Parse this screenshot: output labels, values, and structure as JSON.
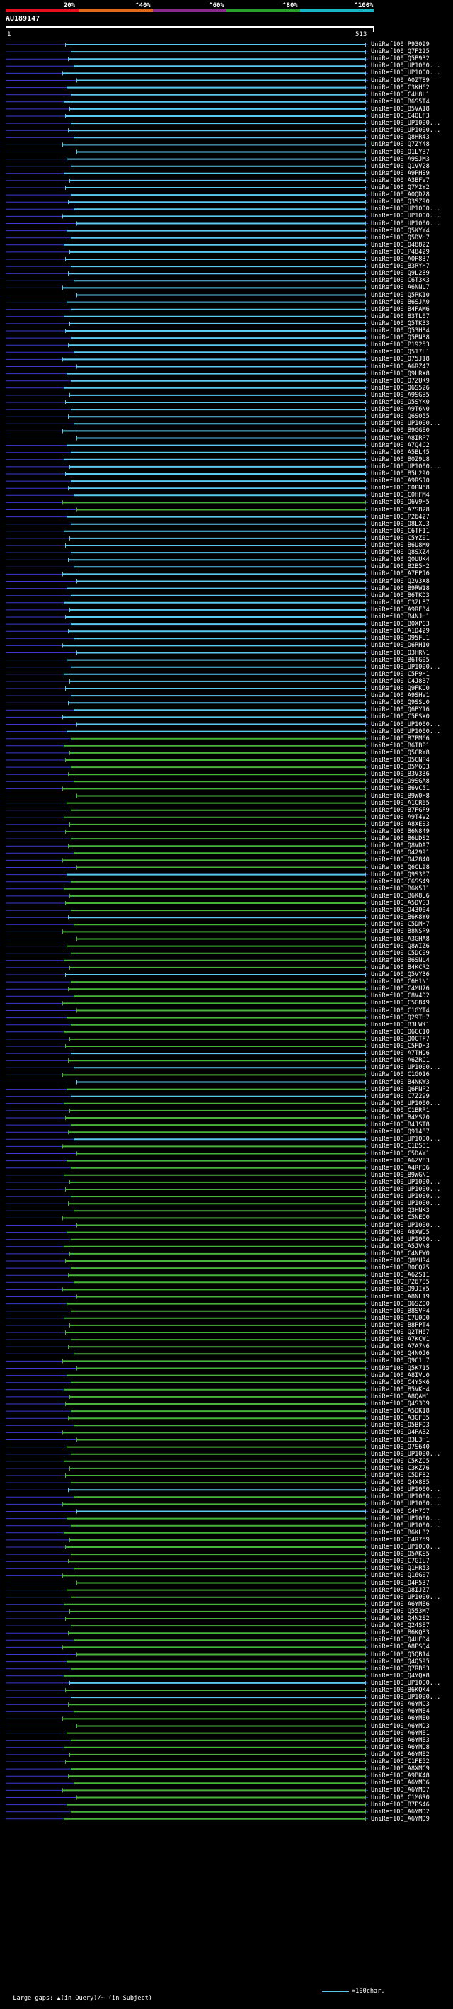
{
  "header": {
    "color_key": [
      {
        "label": "20%",
        "color": "#e8101e"
      },
      {
        "label": "^40%",
        "color": "#e06a1a"
      },
      {
        "label": "^60%",
        "color": "#8a2a8f"
      },
      {
        "label": "^80%",
        "color": "#2aa12a"
      },
      {
        "label": "^100%",
        "color": "#18b7c7"
      }
    ],
    "query_id": "AU189147",
    "ruler_start": "1",
    "ruler_end": "513"
  },
  "colors": {
    "cyan": "#5bc8f0",
    "green": "#47b33a",
    "blue_line": "#3a3ad0",
    "white": "#ffffff"
  },
  "hits": [
    {
      "label": "UniRef100_P93099",
      "c": "c"
    },
    {
      "label": "UniRef100_Q7F225",
      "c": "c"
    },
    {
      "label": "UniRef100_Q5B932",
      "c": "c"
    },
    {
      "label": "UniRef100_UP1000...",
      "c": "c"
    },
    {
      "label": "UniRef100_UP1000...",
      "c": "c"
    },
    {
      "label": "UniRef100_A0ZT89",
      "c": "c"
    },
    {
      "label": "UniRef100_C3KH62",
      "c": "c"
    },
    {
      "label": "UniRef100_C4H8L1",
      "c": "c"
    },
    {
      "label": "UniRef100_B6S5T4",
      "c": "c"
    },
    {
      "label": "UniRef100_B5VA18",
      "c": "c"
    },
    {
      "label": "UniRef100_C4QLF3",
      "c": "c"
    },
    {
      "label": "UniRef100_UP1000...",
      "c": "c"
    },
    {
      "label": "UniRef100_UP1000...",
      "c": "c"
    },
    {
      "label": "UniRef100_Q8HR43",
      "c": "c"
    },
    {
      "label": "UniRef100_Q7ZY48",
      "c": "c"
    },
    {
      "label": "UniRef100_Q1LYB7",
      "c": "c"
    },
    {
      "label": "UniRef100_A9SJM3",
      "c": "c"
    },
    {
      "label": "UniRef100_Q1VV28",
      "c": "c"
    },
    {
      "label": "UniRef100_A9PHS9",
      "c": "c"
    },
    {
      "label": "UniRef100_A3BFV7",
      "c": "c"
    },
    {
      "label": "UniRef100_Q7M2Y2",
      "c": "c"
    },
    {
      "label": "UniRef100_A0QD28",
      "c": "c"
    },
    {
      "label": "UniRef100_Q3SZ90",
      "c": "c"
    },
    {
      "label": "UniRef100_UP1000...",
      "c": "c"
    },
    {
      "label": "UniRef100_UP1000...",
      "c": "c"
    },
    {
      "label": "UniRef100_UP1000...",
      "c": "c"
    },
    {
      "label": "UniRef100_Q5KYY4",
      "c": "c"
    },
    {
      "label": "UniRef100_Q5DVH7",
      "c": "c"
    },
    {
      "label": "UniRef100_O48822",
      "c": "c"
    },
    {
      "label": "UniRef100_P48429",
      "c": "c"
    },
    {
      "label": "UniRef100_A0P837",
      "c": "c"
    },
    {
      "label": "UniRef100_B3RYH7",
      "c": "c"
    },
    {
      "label": "UniRef100_Q9L289",
      "c": "c"
    },
    {
      "label": "UniRef100_C6T3K3",
      "c": "c"
    },
    {
      "label": "UniRef100_A6NNL7",
      "c": "c"
    },
    {
      "label": "UniRef100_Q5RK10",
      "c": "c"
    },
    {
      "label": "UniRef100_B6SJA0",
      "c": "c"
    },
    {
      "label": "UniRef100_B4FAM6",
      "c": "c"
    },
    {
      "label": "UniRef100_B3TL07",
      "c": "c"
    },
    {
      "label": "UniRef100_Q5TK33",
      "c": "c"
    },
    {
      "label": "UniRef100_Q53H34",
      "c": "c"
    },
    {
      "label": "UniRef100_Q5BN38",
      "c": "c"
    },
    {
      "label": "UniRef100_P19253",
      "c": "c"
    },
    {
      "label": "UniRef100_Q517L1",
      "c": "c"
    },
    {
      "label": "UniRef100_Q75J18",
      "c": "c"
    },
    {
      "label": "UniRef100_A6RZ47",
      "c": "c"
    },
    {
      "label": "UniRef100_Q9LRX8",
      "c": "c"
    },
    {
      "label": "UniRef100_Q7ZUK9",
      "c": "c"
    },
    {
      "label": "UniRef100_Q6S526",
      "c": "c"
    },
    {
      "label": "UniRef100_A9SGB5",
      "c": "c"
    },
    {
      "label": "UniRef100_Q5SYK0",
      "c": "c"
    },
    {
      "label": "UniRef100_A9T6N0",
      "c": "c"
    },
    {
      "label": "UniRef100_Q6S055",
      "c": "c"
    },
    {
      "label": "UniRef100_UP1000...",
      "c": "c"
    },
    {
      "label": "UniRef100_B9GGE0",
      "c": "c"
    },
    {
      "label": "UniRef100_A8IRP7",
      "c": "c"
    },
    {
      "label": "UniRef100_A7Q4C2",
      "c": "c"
    },
    {
      "label": "UniRef100_A5BL45",
      "c": "c"
    },
    {
      "label": "UniRef100_B0Z9L8",
      "c": "c"
    },
    {
      "label": "UniRef100_UP1000...",
      "c": "c"
    },
    {
      "label": "UniRef100_B5L290",
      "c": "c"
    },
    {
      "label": "UniRef100_A9RSJ0",
      "c": "c"
    },
    {
      "label": "UniRef100_C0PN68",
      "c": "c"
    },
    {
      "label": "UniRef100_C0HFM4",
      "c": "c"
    },
    {
      "label": "UniRef100_Q6V9H5",
      "c": "g"
    },
    {
      "label": "UniRef100_A7SB28",
      "c": "g"
    },
    {
      "label": "UniRef100_P26427",
      "c": "c"
    },
    {
      "label": "UniRef100_Q8LXU3",
      "c": "c"
    },
    {
      "label": "UniRef100_C6TF11",
      "c": "c"
    },
    {
      "label": "UniRef100_C5YZ01",
      "c": "c"
    },
    {
      "label": "UniRef100_B6U8M0",
      "c": "c"
    },
    {
      "label": "UniRef100_Q8SXZ4",
      "c": "c"
    },
    {
      "label": "UniRef100_Q0UUK4",
      "c": "c"
    },
    {
      "label": "UniRef100_B2B5H2",
      "c": "c"
    },
    {
      "label": "UniRef100_A7EPJ6",
      "c": "c"
    },
    {
      "label": "UniRef100_Q2V3X8",
      "c": "c"
    },
    {
      "label": "UniRef100_B9RW18",
      "c": "c"
    },
    {
      "label": "UniRef100_B6TKD3",
      "c": "c"
    },
    {
      "label": "UniRef100_C3ZL87",
      "c": "c"
    },
    {
      "label": "UniRef100_A9RE34",
      "c": "c"
    },
    {
      "label": "UniRef100_B4NJH1",
      "c": "c"
    },
    {
      "label": "UniRef100_B0XPG3",
      "c": "c"
    },
    {
      "label": "UniRef100_A1D429",
      "c": "c"
    },
    {
      "label": "UniRef100_Q95FU1",
      "c": "c"
    },
    {
      "label": "UniRef100_Q6RH10",
      "c": "c"
    },
    {
      "label": "UniRef100_Q3HRN1",
      "c": "c"
    },
    {
      "label": "UniRef100_B6TG05",
      "c": "c"
    },
    {
      "label": "UniRef100_UP1000...",
      "c": "c"
    },
    {
      "label": "UniRef100_C5P9H1",
      "c": "c"
    },
    {
      "label": "UniRef100_C4J8B7",
      "c": "c"
    },
    {
      "label": "UniRef100_Q9FKC0",
      "c": "c"
    },
    {
      "label": "UniRef100_A9SHV1",
      "c": "c"
    },
    {
      "label": "UniRef100_Q9SSU0",
      "c": "c"
    },
    {
      "label": "UniRef100_Q6BY16",
      "c": "c"
    },
    {
      "label": "UniRef100_C5FSX0",
      "c": "c"
    },
    {
      "label": "UniRef100_UP1000...",
      "c": "c"
    },
    {
      "label": "UniRef100_UP1000...",
      "c": "c"
    },
    {
      "label": "UniRef100_B7PM66",
      "c": "g"
    },
    {
      "label": "UniRef100_B6TBP1",
      "c": "g"
    },
    {
      "label": "UniRef100_Q5CRY8",
      "c": "g"
    },
    {
      "label": "UniRef100_Q5CNP4",
      "c": "g"
    },
    {
      "label": "UniRef100_B5M6D3",
      "c": "g"
    },
    {
      "label": "UniRef100_B3V336",
      "c": "g"
    },
    {
      "label": "UniRef100_Q9SGA8",
      "c": "g"
    },
    {
      "label": "UniRef100_B6VC51",
      "c": "g"
    },
    {
      "label": "UniRef100_B9W0H8",
      "c": "g"
    },
    {
      "label": "UniRef100_A1CR65",
      "c": "g"
    },
    {
      "label": "UniRef100_B7FGF9",
      "c": "g"
    },
    {
      "label": "UniRef100_A9T4V2",
      "c": "g"
    },
    {
      "label": "UniRef100_A8XES3",
      "c": "g"
    },
    {
      "label": "UniRef100_B6N849",
      "c": "g"
    },
    {
      "label": "UniRef100_B6UDS2",
      "c": "g"
    },
    {
      "label": "UniRef100_Q8VDA7",
      "c": "g"
    },
    {
      "label": "UniRef100_O42991",
      "c": "g"
    },
    {
      "label": "UniRef100_O42840",
      "c": "g"
    },
    {
      "label": "UniRef100_Q6CL98",
      "c": "g"
    },
    {
      "label": "UniRef100_Q9S307",
      "c": "c"
    },
    {
      "label": "UniRef100_C6SS49",
      "c": "g"
    },
    {
      "label": "UniRef100_B6K5J1",
      "c": "g"
    },
    {
      "label": "UniRef100_B6K8U6",
      "c": "g"
    },
    {
      "label": "UniRef100_A5DVS3",
      "c": "g"
    },
    {
      "label": "UniRef100_O43004",
      "c": "g"
    },
    {
      "label": "UniRef100_B6K8Y0",
      "c": "c"
    },
    {
      "label": "UniRef100_C5DMH7",
      "c": "g"
    },
    {
      "label": "UniRef100_B8NSP9",
      "c": "g"
    },
    {
      "label": "UniRef100_A3GHA8",
      "c": "g"
    },
    {
      "label": "UniRef100_Q8WIZ6",
      "c": "g"
    },
    {
      "label": "UniRef100_C5DC09",
      "c": "g"
    },
    {
      "label": "UniRef100_B6SNL4",
      "c": "g"
    },
    {
      "label": "UniRef100_B4KCR2",
      "c": "g"
    },
    {
      "label": "UniRef100_Q5VY36",
      "c": "c"
    },
    {
      "label": "UniRef100_C6H1N1",
      "c": "g"
    },
    {
      "label": "UniRef100_C4MU76",
      "c": "g"
    },
    {
      "label": "UniRef100_C8V4D2",
      "c": "g"
    },
    {
      "label": "UniRef100_C5G849",
      "c": "g"
    },
    {
      "label": "UniRef100_C1GYT4",
      "c": "g"
    },
    {
      "label": "UniRef100_Q29TH7",
      "c": "g"
    },
    {
      "label": "UniRef100_B3LWK1",
      "c": "g"
    },
    {
      "label": "UniRef100_Q6CC10",
      "c": "g"
    },
    {
      "label": "UniRef100_Q0CTF7",
      "c": "g"
    },
    {
      "label": "UniRef100_C5FDH3",
      "c": "g"
    },
    {
      "label": "UniRef100_A7THD6",
      "c": "c"
    },
    {
      "label": "UniRef100_A6ZRC1",
      "c": "g"
    },
    {
      "label": "UniRef100_UP1000...",
      "c": "c"
    },
    {
      "label": "UniRef100_C1G016",
      "c": "g"
    },
    {
      "label": "UniRef100_B4NKW3",
      "c": "c"
    },
    {
      "label": "UniRef100_Q6FNP2",
      "c": "g"
    },
    {
      "label": "UniRef100_C7Z299",
      "c": "c"
    },
    {
      "label": "UniRef100_UP1000...",
      "c": "g"
    },
    {
      "label": "UniRef100_C1BRP1",
      "c": "g"
    },
    {
      "label": "UniRef100_B4MS20",
      "c": "g"
    },
    {
      "label": "UniRef100_B4JST8",
      "c": "g"
    },
    {
      "label": "UniRef100_Q91487",
      "c": "g"
    },
    {
      "label": "UniRef100_UP1000...",
      "c": "c"
    },
    {
      "label": "UniRef100_C1BS81",
      "c": "g"
    },
    {
      "label": "UniRef100_C5DAY1",
      "c": "g"
    },
    {
      "label": "UniRef100_A6ZVE3",
      "c": "g"
    },
    {
      "label": "UniRef100_A4RFD6",
      "c": "g"
    },
    {
      "label": "UniRef100_B9WGN1",
      "c": "g"
    },
    {
      "label": "UniRef100_UP1000...",
      "c": "g"
    },
    {
      "label": "UniRef100_UP1000...",
      "c": "g"
    },
    {
      "label": "UniRef100_UP1000...",
      "c": "g"
    },
    {
      "label": "UniRef100_UP1000...",
      "c": "g"
    },
    {
      "label": "UniRef100_Q3HNK3",
      "c": "g"
    },
    {
      "label": "UniRef100_C5NEO0",
      "c": "g"
    },
    {
      "label": "UniRef100_UP1000...",
      "c": "g"
    },
    {
      "label": "UniRef100_A8XWD5",
      "c": "g"
    },
    {
      "label": "UniRef100_UP1000...",
      "c": "g"
    },
    {
      "label": "UniRef100_A5JVN8",
      "c": "g"
    },
    {
      "label": "UniRef100_C4NEW0",
      "c": "g"
    },
    {
      "label": "UniRef100_Q8MUR4",
      "c": "g"
    },
    {
      "label": "UniRef100_B0CQ75",
      "c": "g"
    },
    {
      "label": "UniRef100_A6ZS11",
      "c": "g"
    },
    {
      "label": "UniRef100_P26785",
      "c": "g"
    },
    {
      "label": "UniRef100_Q9JIY5",
      "c": "g"
    },
    {
      "label": "UniRef100_A8NL19",
      "c": "g"
    },
    {
      "label": "UniRef100_Q6SZ00",
      "c": "g"
    },
    {
      "label": "UniRef100_B8SVP4",
      "c": "g"
    },
    {
      "label": "UniRef100_C7U0D0",
      "c": "g"
    },
    {
      "label": "UniRef100_B8PPT4",
      "c": "g"
    },
    {
      "label": "UniRef100_Q2TH67",
      "c": "g"
    },
    {
      "label": "UniRef100_A7KCW1",
      "c": "g"
    },
    {
      "label": "UniRef100_A7A7N6",
      "c": "g"
    },
    {
      "label": "UniRef100_Q4N0J6",
      "c": "g"
    },
    {
      "label": "UniRef100_Q9C1U7",
      "c": "g"
    },
    {
      "label": "UniRef100_Q5K715",
      "c": "g"
    },
    {
      "label": "UniRef100_A8IVU0",
      "c": "g"
    },
    {
      "label": "UniRef100_C4Y5K6",
      "c": "g"
    },
    {
      "label": "UniRef100_B5VKH4",
      "c": "g"
    },
    {
      "label": "UniRef100_A8QAM1",
      "c": "g"
    },
    {
      "label": "UniRef100_Q4S3D9",
      "c": "g"
    },
    {
      "label": "UniRef100_A5DK18",
      "c": "g"
    },
    {
      "label": "UniRef100_A3GFB5",
      "c": "g"
    },
    {
      "label": "UniRef100_Q5BFD3",
      "c": "g"
    },
    {
      "label": "UniRef100_Q4PAB2",
      "c": "g"
    },
    {
      "label": "UniRef100_B3L3H1",
      "c": "g"
    },
    {
      "label": "UniRef100_Q7S640",
      "c": "g"
    },
    {
      "label": "UniRef100_UP1000...",
      "c": "g"
    },
    {
      "label": "UniRef100_C5KZC5",
      "c": "g"
    },
    {
      "label": "UniRef100_C3KZ76",
      "c": "g"
    },
    {
      "label": "UniRef100_C5DF82",
      "c": "g"
    },
    {
      "label": "UniRef100_Q4X885",
      "c": "g"
    },
    {
      "label": "UniRef100_UP1000...",
      "c": "c"
    },
    {
      "label": "UniRef100_UP1000...",
      "c": "g"
    },
    {
      "label": "UniRef100_UP1000...",
      "c": "g"
    },
    {
      "label": "UniRef100_C4H7C7",
      "c": "c"
    },
    {
      "label": "UniRef100_UP1000...",
      "c": "g"
    },
    {
      "label": "UniRef100_UP1000...",
      "c": "g"
    },
    {
      "label": "UniRef100_B6KL32",
      "c": "g"
    },
    {
      "label": "UniRef100_C4R759",
      "c": "g"
    },
    {
      "label": "UniRef100_UP1000...",
      "c": "g"
    },
    {
      "label": "UniRef100_Q5AKS5",
      "c": "g"
    },
    {
      "label": "UniRef100_C7GIL7",
      "c": "g"
    },
    {
      "label": "UniRef100_Q1HR53",
      "c": "g"
    },
    {
      "label": "UniRef100_Q16G07",
      "c": "g"
    },
    {
      "label": "UniRef100_Q4P537",
      "c": "g"
    },
    {
      "label": "UniRef100_Q8IJZ7",
      "c": "g"
    },
    {
      "label": "UniRef100_UP1000...",
      "c": "g"
    },
    {
      "label": "UniRef100_A6YME6",
      "c": "g"
    },
    {
      "label": "UniRef100_Q553M7",
      "c": "g"
    },
    {
      "label": "UniRef100_Q4N2S2",
      "c": "g"
    },
    {
      "label": "UniRef100_Q24SE7",
      "c": "g"
    },
    {
      "label": "UniRef100_B6KQ83",
      "c": "g"
    },
    {
      "label": "UniRef100_Q4UFD4",
      "c": "g"
    },
    {
      "label": "UniRef100_A8PSQ4",
      "c": "g"
    },
    {
      "label": "UniRef100_Q5QB14",
      "c": "g"
    },
    {
      "label": "UniRef100_Q4Q595",
      "c": "g"
    },
    {
      "label": "UniRef100_Q7RB53",
      "c": "g"
    },
    {
      "label": "UniRef100_Q4YQX8",
      "c": "g"
    },
    {
      "label": "UniRef100_UP1000...",
      "c": "c"
    },
    {
      "label": "UniRef100_B6KQK4",
      "c": "g"
    },
    {
      "label": "UniRef100_UP1000...",
      "c": "c"
    },
    {
      "label": "UniRef100_A6YMC3",
      "c": "g"
    },
    {
      "label": "UniRef100_A6YME4",
      "c": "g"
    },
    {
      "label": "UniRef100_A6YME0",
      "c": "g"
    },
    {
      "label": "UniRef100_A6YMD3",
      "c": "g"
    },
    {
      "label": "UniRef100_A6YME1",
      "c": "g"
    },
    {
      "label": "UniRef100_A6YME3",
      "c": "g"
    },
    {
      "label": "UniRef100_A6YMD8",
      "c": "g"
    },
    {
      "label": "UniRef100_A6YME2",
      "c": "g"
    },
    {
      "label": "UniRef100_C1FE52",
      "c": "g"
    },
    {
      "label": "UniRef100_A8XMC9",
      "c": "g"
    },
    {
      "label": "UniRef100_A9BK48",
      "c": "g"
    },
    {
      "label": "UniRef100_A6YMD6",
      "c": "g"
    },
    {
      "label": "UniRef100_A6YMD7",
      "c": "g"
    },
    {
      "label": "UniRef100_C1MGR0",
      "c": "g"
    },
    {
      "label": "UniRef100_B7PS46",
      "c": "g"
    },
    {
      "label": "UniRef100_A6YMD2",
      "c": "g"
    },
    {
      "label": "UniRef100_A6YMD9",
      "c": "g"
    }
  ],
  "footer": {
    "text": "Large gaps: ▲(in Query)/~ (in Subject)",
    "scale": "=100char."
  }
}
